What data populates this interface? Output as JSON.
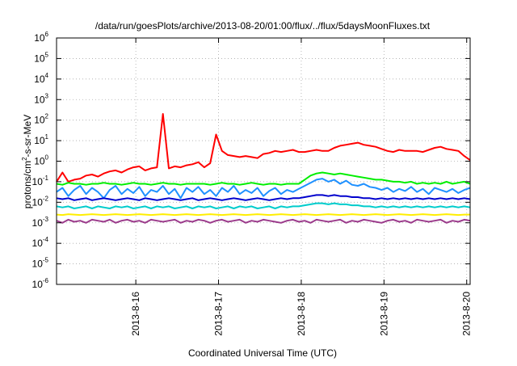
{
  "chart_data": {
    "type": "line",
    "title": "/data/run/goesPlots/archive/2013-08-20/01:00/flux/../flux/5daysMoonFluxes.txt",
    "xlabel": "Coordinated Universal Time (UTC)",
    "ylabel_parts": [
      "protons/cm",
      "2",
      "-s-sr-MeV"
    ],
    "y_scale": "log",
    "ylim": [
      -6,
      6
    ],
    "y_ticks": [
      {
        "base": "10",
        "exp": "6"
      },
      {
        "base": "10",
        "exp": "5"
      },
      {
        "base": "10",
        "exp": "4"
      },
      {
        "base": "10",
        "exp": "3"
      },
      {
        "base": "10",
        "exp": "2"
      },
      {
        "base": "10",
        "exp": "1"
      },
      {
        "base": "10",
        "exp": "0"
      },
      {
        "base": "10",
        "exp": "-1"
      },
      {
        "base": "10",
        "exp": "-2"
      },
      {
        "base": "10",
        "exp": "-3"
      },
      {
        "base": "10",
        "exp": "-4"
      },
      {
        "base": "10",
        "exp": "-5"
      },
      {
        "base": "10",
        "exp": "-6"
      }
    ],
    "x_range": [
      "2013-08-15 01:00",
      "2013-08-20 01:00"
    ],
    "x_ticks": [
      "2013-8-16",
      "2013-8-17",
      "2013-8-18",
      "2013-8-19",
      "2013-8-20"
    ],
    "grid": true,
    "series": [
      {
        "color": "#ff0000",
        "values": [
          -1.0,
          -0.55,
          -1.0,
          -0.9,
          -0.85,
          -0.7,
          -0.65,
          -0.75,
          -0.6,
          -0.5,
          -0.45,
          -0.55,
          -0.4,
          -0.3,
          -0.25,
          -0.45,
          -0.35,
          -0.3,
          2.3,
          -0.35,
          -0.25,
          -0.3,
          -0.2,
          -0.15,
          -0.05,
          -0.3,
          -0.1,
          1.3,
          0.5,
          0.3,
          0.25,
          0.2,
          0.25,
          0.2,
          0.15,
          0.35,
          0.4,
          0.5,
          0.45,
          0.5,
          0.55,
          0.45,
          0.45,
          0.5,
          0.55,
          0.5,
          0.5,
          0.65,
          0.75,
          0.8,
          0.85,
          0.9,
          0.8,
          0.75,
          0.7,
          0.6,
          0.5,
          0.45,
          0.55,
          0.5,
          0.5,
          0.5,
          0.45,
          0.55,
          0.65,
          0.7,
          0.6,
          0.55,
          0.5,
          0.25,
          0.05
        ]
      },
      {
        "color": "#00ee00",
        "values": [
          -1.1,
          -1.15,
          -1.05,
          -1.1,
          -1.1,
          -1.15,
          -1.1,
          -1.1,
          -1.05,
          -1.1,
          -1.1,
          -1.15,
          -1.1,
          -1.05,
          -1.1,
          -1.1,
          -1.15,
          -1.1,
          -1.05,
          -1.1,
          -1.1,
          -1.15,
          -1.1,
          -1.1,
          -1.1,
          -1.1,
          -1.15,
          -1.1,
          -1.05,
          -1.1,
          -1.1,
          -1.15,
          -1.1,
          -1.05,
          -1.1,
          -1.15,
          -1.1,
          -1.1,
          -1.15,
          -1.1,
          -1.1,
          -1.1,
          -0.9,
          -0.7,
          -0.6,
          -0.55,
          -0.6,
          -0.65,
          -0.6,
          -0.65,
          -0.7,
          -0.75,
          -0.8,
          -0.85,
          -0.9,
          -0.9,
          -0.95,
          -1.0,
          -1.0,
          -1.05,
          -1.0,
          -1.1,
          -1.05,
          -1.1,
          -1.05,
          -1.1,
          -1.0,
          -1.1,
          -1.05,
          -1.0,
          -1.1
        ]
      },
      {
        "color": "#1e90ff",
        "values": [
          -1.5,
          -1.3,
          -1.7,
          -1.4,
          -1.2,
          -1.6,
          -1.3,
          -1.5,
          -1.8,
          -1.4,
          -1.2,
          -1.6,
          -1.35,
          -1.55,
          -1.25,
          -1.7,
          -1.4,
          -1.5,
          -1.2,
          -1.6,
          -1.35,
          -1.8,
          -1.3,
          -1.5,
          -1.25,
          -1.6,
          -1.4,
          -1.7,
          -1.3,
          -1.5,
          -1.2,
          -1.6,
          -1.4,
          -1.55,
          -1.3,
          -1.7,
          -1.45,
          -1.3,
          -1.6,
          -1.4,
          -1.5,
          -1.35,
          -1.2,
          -1.05,
          -0.9,
          -0.85,
          -1.0,
          -0.9,
          -1.1,
          -0.95,
          -1.15,
          -1.2,
          -1.1,
          -1.25,
          -1.3,
          -1.4,
          -1.3,
          -1.5,
          -1.35,
          -1.45,
          -1.25,
          -1.5,
          -1.35,
          -1.6,
          -1.3,
          -1.4,
          -1.5,
          -1.35,
          -1.55,
          -1.4,
          -1.3
        ]
      },
      {
        "color": "#0000cd",
        "values": [
          -1.8,
          -1.85,
          -1.8,
          -1.9,
          -1.85,
          -1.8,
          -1.9,
          -1.85,
          -1.8,
          -1.85,
          -1.9,
          -1.85,
          -1.8,
          -1.85,
          -1.9,
          -1.8,
          -1.85,
          -1.9,
          -1.85,
          -1.8,
          -1.85,
          -1.9,
          -1.85,
          -1.8,
          -1.9,
          -1.85,
          -1.8,
          -1.85,
          -1.9,
          -1.85,
          -1.8,
          -1.85,
          -1.9,
          -1.85,
          -1.8,
          -1.85,
          -1.9,
          -1.85,
          -1.8,
          -1.85,
          -1.8,
          -1.8,
          -1.75,
          -1.7,
          -1.65,
          -1.65,
          -1.7,
          -1.65,
          -1.7,
          -1.7,
          -1.75,
          -1.75,
          -1.8,
          -1.8,
          -1.85,
          -1.8,
          -1.85,
          -1.8,
          -1.85,
          -1.8,
          -1.85,
          -1.8,
          -1.85,
          -1.8,
          -1.85,
          -1.8,
          -1.85,
          -1.8,
          -1.85,
          -1.8,
          -1.85
        ]
      },
      {
        "color": "#00cccc",
        "values": [
          -2.2,
          -2.25,
          -2.2,
          -2.3,
          -2.25,
          -2.2,
          -2.3,
          -2.2,
          -2.25,
          -2.3,
          -2.2,
          -2.25,
          -2.2,
          -2.3,
          -2.25,
          -2.2,
          -2.3,
          -2.2,
          -2.25,
          -2.2,
          -2.3,
          -2.25,
          -2.2,
          -2.3,
          -2.2,
          -2.25,
          -2.2,
          -2.3,
          -2.25,
          -2.2,
          -2.3,
          -2.2,
          -2.25,
          -2.2,
          -2.3,
          -2.25,
          -2.2,
          -2.3,
          -2.2,
          -2.25,
          -2.2,
          -2.2,
          -2.15,
          -2.1,
          -2.05,
          -2.05,
          -2.1,
          -2.05,
          -2.1,
          -2.1,
          -2.15,
          -2.15,
          -2.2,
          -2.2,
          -2.25,
          -2.2,
          -2.25,
          -2.2,
          -2.25,
          -2.2,
          -2.25,
          -2.2,
          -2.25,
          -2.2,
          -2.25,
          -2.2,
          -2.25,
          -2.2,
          -2.25,
          -2.2,
          -2.25
        ]
      },
      {
        "color": "#ffee00",
        "values": [
          -2.6,
          -2.62,
          -2.58,
          -2.6,
          -2.62,
          -2.6,
          -2.58,
          -2.6,
          -2.62,
          -2.6,
          -2.58,
          -2.6,
          -2.62,
          -2.6,
          -2.58,
          -2.6,
          -2.62,
          -2.6,
          -2.58,
          -2.6,
          -2.62,
          -2.6,
          -2.58,
          -2.6,
          -2.62,
          -2.6,
          -2.58,
          -2.6,
          -2.62,
          -2.6,
          -2.58,
          -2.6,
          -2.62,
          -2.6,
          -2.58,
          -2.6,
          -2.62,
          -2.6,
          -2.58,
          -2.6,
          -2.62,
          -2.6,
          -2.58,
          -2.6,
          -2.62,
          -2.6,
          -2.58,
          -2.6,
          -2.62,
          -2.6,
          -2.58,
          -2.6,
          -2.62,
          -2.6,
          -2.58,
          -2.6,
          -2.62,
          -2.6,
          -2.58,
          -2.6,
          -2.62,
          -2.6,
          -2.58,
          -2.6,
          -2.62,
          -2.6,
          -2.58,
          -2.6,
          -2.62,
          -2.6,
          -2.6
        ]
      },
      {
        "color": "#9b3b8b",
        "values": [
          -2.9,
          -3.0,
          -2.85,
          -2.95,
          -2.9,
          -3.0,
          -2.85,
          -2.9,
          -2.95,
          -2.85,
          -3.0,
          -2.9,
          -2.85,
          -2.95,
          -2.9,
          -3.0,
          -2.85,
          -2.9,
          -2.95,
          -2.9,
          -2.85,
          -3.0,
          -2.9,
          -2.95,
          -2.85,
          -2.9,
          -3.0,
          -2.9,
          -2.85,
          -2.95,
          -2.9,
          -2.85,
          -3.0,
          -2.9,
          -2.95,
          -2.85,
          -2.9,
          -2.95,
          -3.0,
          -2.9,
          -2.85,
          -2.95,
          -2.9,
          -3.0,
          -2.85,
          -2.9,
          -2.95,
          -2.9,
          -2.85,
          -3.0,
          -2.9,
          -2.95,
          -2.85,
          -2.9,
          -2.95,
          -3.0,
          -2.9,
          -2.85,
          -2.95,
          -2.9,
          -3.0,
          -2.85,
          -2.9,
          -2.95,
          -2.9,
          -2.85,
          -3.0,
          -2.9,
          -2.95,
          -2.85,
          -2.9
        ]
      }
    ]
  }
}
